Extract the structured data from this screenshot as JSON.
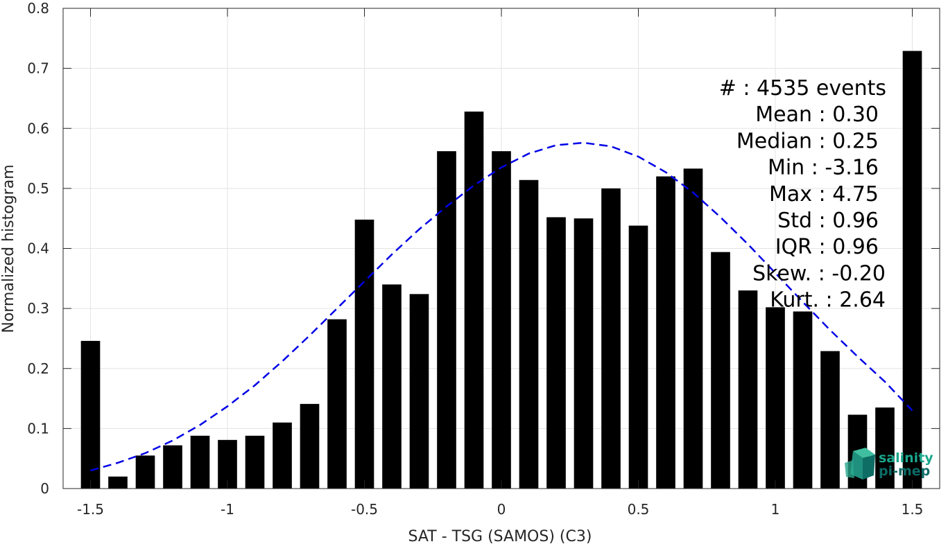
{
  "chart_data": {
    "type": "bar",
    "xlabel": "SAT - TSG (SAMOS) (C3)",
    "ylabel": "Normalized histogram",
    "xlim": [
      -1.6,
      1.6
    ],
    "ylim": [
      0,
      0.8
    ],
    "x_ticks": [
      -1.5,
      -1,
      -0.5,
      0,
      0.5,
      1,
      1.5
    ],
    "x_tick_labels": [
      "-1.5",
      "-1",
      "-0.5",
      "0",
      "0.5",
      "1",
      "1.5"
    ],
    "y_ticks": [
      0,
      0.1,
      0.2,
      0.3,
      0.4,
      0.5,
      0.6,
      0.7,
      0.8
    ],
    "y_tick_labels": [
      "0",
      "0.1",
      "0.2",
      "0.3",
      "0.4",
      "0.5",
      "0.6",
      "0.7",
      "0.8"
    ],
    "grid": true,
    "bar_color": "#000000",
    "x": [
      -1.5,
      -1.4,
      -1.3,
      -1.2,
      -1.1,
      -1.0,
      -0.9,
      -0.8,
      -0.7,
      -0.6,
      -0.5,
      -0.4,
      -0.3,
      -0.2,
      -0.1,
      0.0,
      0.1,
      0.2,
      0.3,
      0.4,
      0.5,
      0.6,
      0.7,
      0.8,
      0.9,
      1.0,
      1.1,
      1.2,
      1.3,
      1.4,
      1.5
    ],
    "values": [
      0.246,
      0.02,
      0.055,
      0.072,
      0.088,
      0.081,
      0.088,
      0.11,
      0.141,
      0.282,
      0.448,
      0.34,
      0.324,
      0.562,
      0.628,
      0.562,
      0.514,
      0.452,
      0.45,
      0.5,
      0.438,
      0.52,
      0.533,
      0.394,
      0.33,
      0.302,
      0.295,
      0.229,
      0.123,
      0.135,
      0.729
    ],
    "fit_curve": {
      "style": "dashed",
      "color": "#0000e6",
      "x": [
        -1.5,
        -1.4,
        -1.3,
        -1.2,
        -1.1,
        -1.0,
        -0.9,
        -0.8,
        -0.7,
        -0.6,
        -0.5,
        -0.4,
        -0.3,
        -0.2,
        -0.1,
        0.0,
        0.1,
        0.2,
        0.3,
        0.4,
        0.5,
        0.6,
        0.7,
        0.8,
        0.9,
        1.0,
        1.1,
        1.2,
        1.3,
        1.4,
        1.5
      ],
      "y": [
        0.03,
        0.043,
        0.059,
        0.08,
        0.106,
        0.137,
        0.172,
        0.212,
        0.255,
        0.3,
        0.345,
        0.39,
        0.432,
        0.47,
        0.505,
        0.535,
        0.558,
        0.572,
        0.576,
        0.57,
        0.553,
        0.527,
        0.493,
        0.452,
        0.407,
        0.359,
        0.311,
        0.264,
        0.22,
        0.178,
        0.13
      ]
    },
    "stats": [
      "#  : 4535 events",
      "Mean : 0.30",
      "Median : 0.25",
      "Min : -3.16",
      "Max : 4.75",
      "Std : 0.96",
      "IQR : 0.96",
      "Skew. : -0.20",
      "Kurt. : 2.64"
    ]
  },
  "logo": {
    "line1": "salinity",
    "line2": "pi-mep",
    "color1": "#1aa68c",
    "color2": "#0d6b66"
  }
}
